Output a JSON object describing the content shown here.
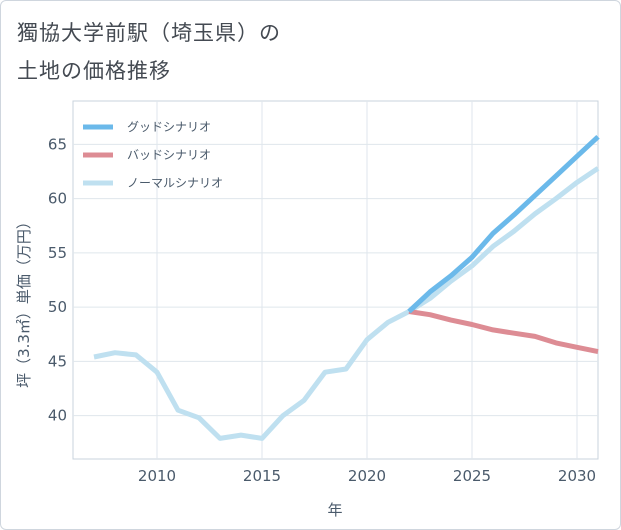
{
  "header": {
    "title_line1": "獨協大学前駅（埼玉県）の",
    "title_line2": "土地の価格推移"
  },
  "chart_data": {
    "type": "line",
    "title": "獨協大学前駅（埼玉県）の土地の価格推移",
    "xlabel": "年",
    "ylabel": "坪（3.3㎡）単価（万円）",
    "xlim": [
      2006,
      2031
    ],
    "ylim": [
      36,
      69
    ],
    "xticks": [
      2010,
      2015,
      2020,
      2025,
      2030
    ],
    "yticks": [
      40,
      45,
      50,
      55,
      60,
      65
    ],
    "grid": true,
    "legend_position": "top-left",
    "series": [
      {
        "name": "グッドシナリオ",
        "color": "#6bb9ea",
        "x": [
          2022,
          2023,
          2024,
          2025,
          2026,
          2027,
          2028,
          2029,
          2030,
          2031
        ],
        "values": [
          49.6,
          51.4,
          52.9,
          54.6,
          56.8,
          58.5,
          60.3,
          62.1,
          63.9,
          65.7
        ]
      },
      {
        "name": "バッドシナリオ",
        "color": "#dd8c94",
        "x": [
          2022,
          2023,
          2024,
          2025,
          2026,
          2027,
          2028,
          2029,
          2030,
          2031
        ],
        "values": [
          49.6,
          49.3,
          48.8,
          48.4,
          47.9,
          47.6,
          47.3,
          46.7,
          46.3,
          45.9
        ]
      },
      {
        "name": "ノーマルシナリオ",
        "color": "#bfe0f0",
        "x": [
          2007,
          2008,
          2009,
          2010,
          2011,
          2012,
          2013,
          2014,
          2015,
          2016,
          2017,
          2018,
          2019,
          2020,
          2021,
          2022,
          2023,
          2024,
          2025,
          2026,
          2027,
          2028,
          2029,
          2030,
          2031
        ],
        "values": [
          45.4,
          45.8,
          45.6,
          44.0,
          40.5,
          39.8,
          37.9,
          38.2,
          37.9,
          40.0,
          41.4,
          44.0,
          44.3,
          47.0,
          48.6,
          49.6,
          50.8,
          52.4,
          53.8,
          55.6,
          57.0,
          58.6,
          60.0,
          61.5,
          62.8
        ]
      }
    ]
  }
}
